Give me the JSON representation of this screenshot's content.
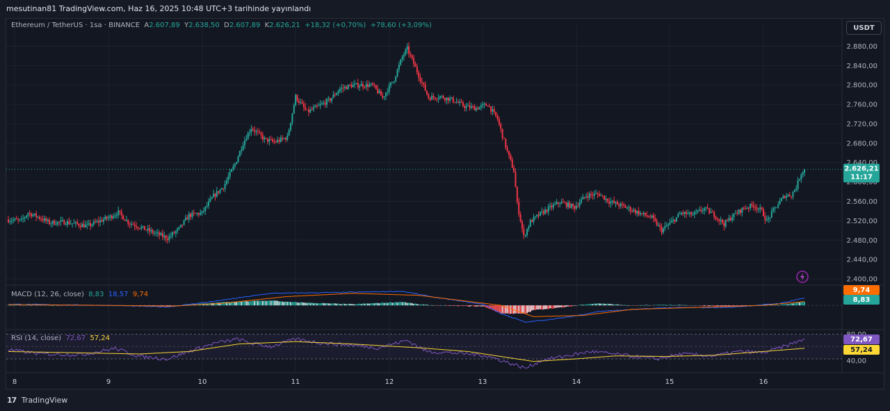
{
  "header": {
    "publish_line": "mesutinan81 TradingView.com, Haz 16, 2025 10:48 UTC+3 tarihinde yayınlandı"
  },
  "legend": {
    "symbol": "Ethereum / TetherUS · 1sa · BINANCE",
    "open_label": "A",
    "open": "2.607,89",
    "high_label": "Y",
    "high": "2.638,50",
    "low_label": "D",
    "low": "2.607,89",
    "close_label": "K",
    "close": "2.626,21",
    "change": "+18,32 (+0,70%)",
    "change2": "+78,60 (+3,09%)"
  },
  "currency_button": "USDT",
  "price_tag": {
    "price": "2.626,21",
    "countdown": "11:17"
  },
  "macd": {
    "title": "MACD (12, 26, close)",
    "hist": "8,83",
    "macd": "18,57",
    "signal": "9,74",
    "tag_signal": "9,74",
    "tag_hist": "8,83"
  },
  "rsi": {
    "title": "RSI (14, close)",
    "rsi": "72,67",
    "ma": "57,24",
    "tag_rsi": "72,67",
    "tag_ma": "57,24",
    "upper_label": "80,00",
    "lower_label": "40,00"
  },
  "colors": {
    "up": "#26a69a",
    "down": "#f23645",
    "macd": "#2962ff",
    "signal": "#ff6d00",
    "rsi": "#7e57c2",
    "rsi_ma": "#fdd835",
    "background": "#131722",
    "grid": "#1e222d"
  },
  "footer": {
    "brand": "TradingView"
  },
  "chart_data": {
    "type": "candlestick",
    "symbol": "ETH/USDT",
    "interval": "1h",
    "y_ticks": [
      "2.880,00",
      "2.840,00",
      "2.800,00",
      "2.760,00",
      "2.720,00",
      "2.680,00",
      "2.640,00",
      "2.600,00",
      "2.560,00",
      "2.520,00",
      "2.480,00",
      "2.440,00",
      "2.400,00"
    ],
    "y_tick_values": [
      2880,
      2840,
      2800,
      2760,
      2720,
      2680,
      2640,
      2600,
      2560,
      2520,
      2480,
      2440,
      2400
    ],
    "x_ticks": [
      "8",
      "9",
      "10",
      "11",
      "12",
      "13",
      "14",
      "15",
      "16"
    ],
    "ylim": [
      2390,
      2895
    ],
    "candle_anchors": [
      [
        0,
        2522
      ],
      [
        8,
        2520
      ],
      [
        12,
        2536
      ],
      [
        18,
        2528
      ],
      [
        25,
        2516
      ],
      [
        35,
        2517
      ],
      [
        48,
        2509
      ],
      [
        62,
        2528
      ],
      [
        67,
        2537
      ],
      [
        73,
        2517
      ],
      [
        85,
        2500
      ],
      [
        97,
        2484
      ],
      [
        104,
        2503
      ],
      [
        110,
        2531
      ],
      [
        118,
        2536
      ],
      [
        125,
        2571
      ],
      [
        131,
        2590
      ],
      [
        138,
        2636
      ],
      [
        143,
        2680
      ],
      [
        148,
        2712
      ],
      [
        156,
        2688
      ],
      [
        162,
        2682
      ],
      [
        170,
        2692
      ],
      [
        175,
        2776
      ],
      [
        182,
        2744
      ],
      [
        189,
        2756
      ],
      [
        196,
        2770
      ],
      [
        202,
        2792
      ],
      [
        209,
        2799
      ],
      [
        215,
        2800
      ],
      [
        222,
        2799
      ],
      [
        228,
        2774
      ],
      [
        235,
        2812
      ],
      [
        240,
        2858
      ],
      [
        243,
        2875
      ],
      [
        250,
        2820
      ],
      [
        256,
        2774
      ],
      [
        263,
        2776
      ],
      [
        270,
        2770
      ],
      [
        278,
        2756
      ],
      [
        285,
        2752
      ],
      [
        292,
        2760
      ],
      [
        298,
        2730
      ],
      [
        304,
        2662
      ],
      [
        308,
        2622
      ],
      [
        310,
        2555
      ],
      [
        314,
        2487
      ],
      [
        318,
        2518
      ],
      [
        324,
        2534
      ],
      [
        331,
        2549
      ],
      [
        336,
        2558
      ],
      [
        345,
        2548
      ],
      [
        352,
        2572
      ],
      [
        360,
        2575
      ],
      [
        366,
        2560
      ],
      [
        376,
        2548
      ],
      [
        385,
        2535
      ],
      [
        392,
        2526
      ],
      [
        398,
        2500
      ],
      [
        405,
        2520
      ],
      [
        410,
        2536
      ],
      [
        417,
        2532
      ],
      [
        424,
        2545
      ],
      [
        430,
        2532
      ],
      [
        436,
        2513
      ],
      [
        441,
        2529
      ],
      [
        448,
        2546
      ],
      [
        454,
        2552
      ],
      [
        459,
        2540
      ],
      [
        462,
        2519
      ],
      [
        467,
        2546
      ],
      [
        473,
        2572
      ],
      [
        477,
        2573
      ],
      [
        480,
        2590
      ],
      [
        483,
        2618
      ],
      [
        485,
        2626
      ]
    ],
    "macd_anchors": [
      [
        0,
        3
      ],
      [
        60,
        0
      ],
      [
        97,
        -4
      ],
      [
        125,
        10
      ],
      [
        160,
        30
      ],
      [
        200,
        32
      ],
      [
        240,
        35
      ],
      [
        260,
        20
      ],
      [
        290,
        2
      ],
      [
        300,
        -20
      ],
      [
        315,
        -42
      ],
      [
        340,
        -30
      ],
      [
        360,
        -15
      ],
      [
        400,
        -6
      ],
      [
        440,
        -5
      ],
      [
        470,
        5
      ],
      [
        485,
        18.57
      ]
    ],
    "signal_anchors": [
      [
        0,
        2
      ],
      [
        60,
        0
      ],
      [
        100,
        -2
      ],
      [
        130,
        5
      ],
      [
        170,
        22
      ],
      [
        210,
        30
      ],
      [
        250,
        25
      ],
      [
        280,
        10
      ],
      [
        300,
        0
      ],
      [
        320,
        -28
      ],
      [
        350,
        -25
      ],
      [
        380,
        -10
      ],
      [
        420,
        -5
      ],
      [
        460,
        0
      ],
      [
        485,
        9.74
      ]
    ],
    "rsi_anchors": [
      [
        0,
        55
      ],
      [
        20,
        48
      ],
      [
        45,
        47
      ],
      [
        65,
        57
      ],
      [
        80,
        44
      ],
      [
        97,
        40
      ],
      [
        110,
        52
      ],
      [
        125,
        65
      ],
      [
        140,
        72
      ],
      [
        148,
        65
      ],
      [
        160,
        60
      ],
      [
        175,
        72
      ],
      [
        190,
        66
      ],
      [
        210,
        62
      ],
      [
        225,
        58
      ],
      [
        243,
        70
      ],
      [
        255,
        52
      ],
      [
        270,
        50
      ],
      [
        290,
        46
      ],
      [
        300,
        38
      ],
      [
        315,
        25
      ],
      [
        325,
        38
      ],
      [
        340,
        45
      ],
      [
        355,
        52
      ],
      [
        375,
        46
      ],
      [
        395,
        40
      ],
      [
        410,
        48
      ],
      [
        430,
        45
      ],
      [
        445,
        52
      ],
      [
        460,
        50
      ],
      [
        475,
        62
      ],
      [
        485,
        72.67
      ]
    ],
    "rsi_ma_anchors": [
      [
        0,
        52
      ],
      [
        40,
        50
      ],
      [
        80,
        48
      ],
      [
        110,
        52
      ],
      [
        140,
        64
      ],
      [
        175,
        68
      ],
      [
        210,
        64
      ],
      [
        250,
        58
      ],
      [
        280,
        52
      ],
      [
        300,
        44
      ],
      [
        320,
        36
      ],
      [
        345,
        40
      ],
      [
        370,
        45
      ],
      [
        400,
        44
      ],
      [
        430,
        46
      ],
      [
        460,
        52
      ],
      [
        485,
        57.24
      ]
    ],
    "last_price": 2626.21
  }
}
